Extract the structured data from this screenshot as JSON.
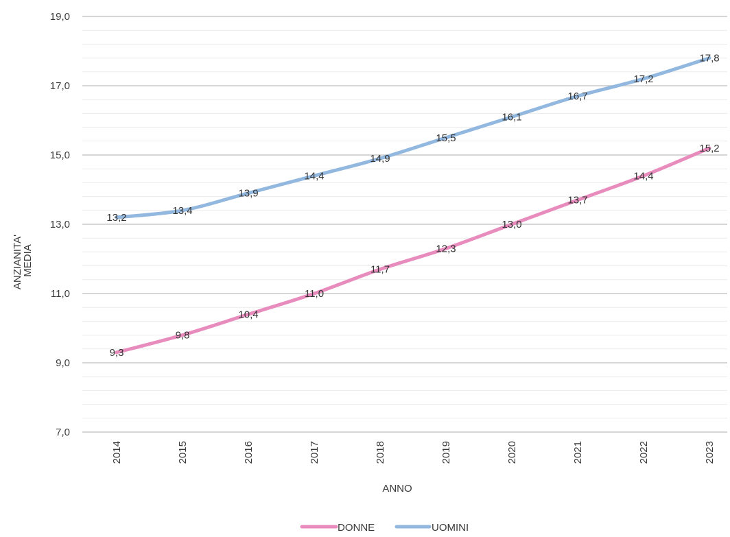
{
  "chart_data": {
    "type": "line",
    "title": "",
    "xlabel": "ANNO",
    "ylabel_lines": [
      "ANZIANITA'",
      "MEDIA"
    ],
    "categories": [
      "2014",
      "2015",
      "2016",
      "2017",
      "2018",
      "2019",
      "2020",
      "2021",
      "2022",
      "2023"
    ],
    "ylim": [
      7.0,
      19.0
    ],
    "yticks": [
      "7,0",
      "9,0",
      "11,0",
      "13,0",
      "15,0",
      "17,0",
      "19,0"
    ],
    "ytick_values": [
      7,
      9,
      11,
      13,
      15,
      17,
      19
    ],
    "grid": true,
    "legend_position": "bottom",
    "series": [
      {
        "name": "DONNE",
        "color": "#e88cbe",
        "values": [
          9.3,
          9.8,
          10.4,
          11.0,
          11.7,
          12.3,
          13.0,
          13.7,
          14.4,
          15.2
        ],
        "labels": [
          "9,3",
          "9,8",
          "10,4",
          "11,0",
          "11,7",
          "12,3",
          "13,0",
          "13,7",
          "14,4",
          "15,2"
        ]
      },
      {
        "name": "UOMINI",
        "color": "#93b8df",
        "values": [
          13.2,
          13.4,
          13.9,
          14.4,
          14.9,
          15.5,
          16.1,
          16.7,
          17.2,
          17.8
        ],
        "labels": [
          "13,2",
          "13,4",
          "13,9",
          "14,4",
          "14,9",
          "15,5",
          "16,1",
          "16,7",
          "17,2",
          "17,8"
        ]
      }
    ]
  }
}
